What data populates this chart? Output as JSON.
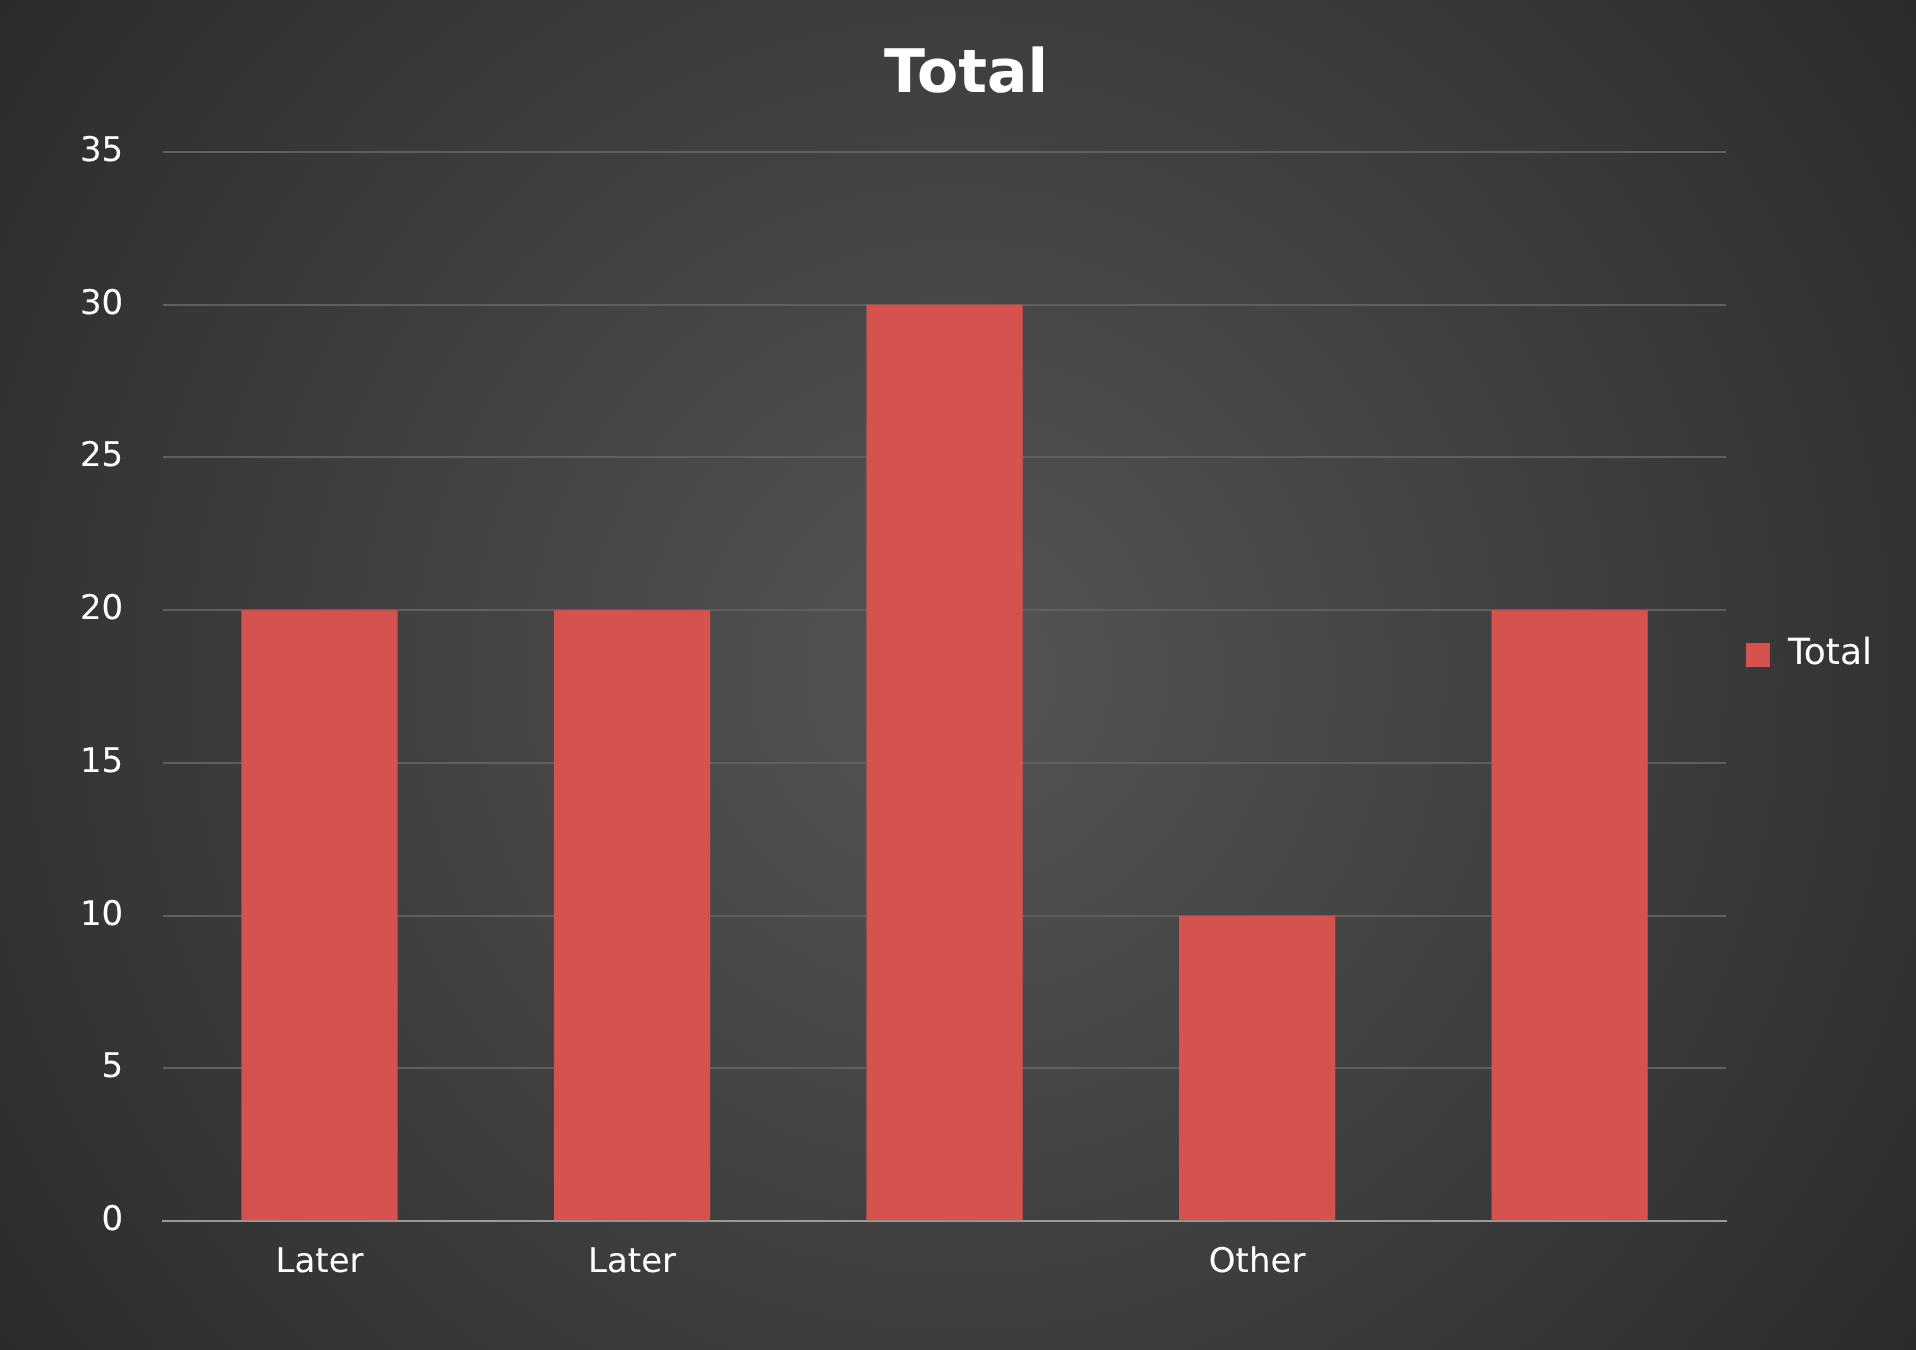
{
  "chart_data": {
    "type": "bar",
    "title": "Total",
    "categories": [
      "Later",
      "Later",
      null,
      "Other",
      null
    ],
    "series": [
      {
        "name": "Total",
        "color": "#d4534f",
        "values": [
          20,
          20,
          30,
          10,
          20
        ]
      }
    ],
    "ylim": [
      0,
      35
    ],
    "yticks": [
      0,
      5,
      10,
      15,
      20,
      25,
      30,
      35
    ],
    "grid": "y",
    "legend": "right"
  }
}
